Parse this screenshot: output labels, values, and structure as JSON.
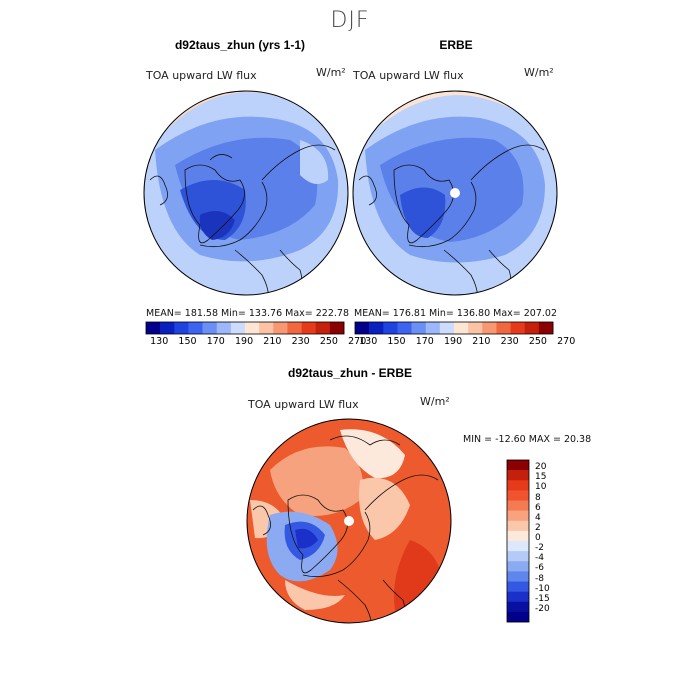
{
  "season": "DJF",
  "panels": [
    {
      "title": "d92taus_zhun (yrs 1-1)",
      "variable": "TOA upward LW flux",
      "units": "W/m²",
      "stats": "MEAN= 181.58   Min= 133.76   Max= 222.78"
    },
    {
      "title": "ERBE",
      "variable": "TOA upward LW flux",
      "units": "W/m²",
      "stats": "MEAN= 176.81   Min= 136.80   Max= 207.02"
    }
  ],
  "colorbar_top": {
    "labels": [
      "130",
      "150",
      "170",
      "190",
      "210",
      "230",
      "250",
      "270"
    ],
    "colors": [
      "#00008b",
      "#0a1fbf",
      "#1f43e0",
      "#3c64f0",
      "#6a8ff5",
      "#9db8fa",
      "#cddcfd",
      "#fde6d4",
      "#fbc2a4",
      "#f79872",
      "#f0683f",
      "#e53b1b",
      "#c4200c",
      "#8b0000"
    ]
  },
  "difference": {
    "title": "d92taus_zhun - ERBE",
    "variable": "TOA upward LW flux",
    "units": "W/m²",
    "stats": "MIN = -12.60  MAX =  20.38",
    "colorbar_labels": [
      "20",
      "15",
      "10",
      "8",
      "6",
      "4",
      "2",
      "0",
      "-2",
      "-4",
      "-6",
      "-8",
      "-10",
      "-15",
      "-20"
    ],
    "colorbar_colors": [
      "#8b0000",
      "#c4200c",
      "#e53b1b",
      "#f0532e",
      "#f47a52",
      "#f8a27e",
      "#fbc7ab",
      "#fde8dc",
      "#dde8fb",
      "#b4cbf7",
      "#8baaf2",
      "#5f86ec",
      "#3558e2",
      "#1b2fc9",
      "#08109f",
      "#00008b"
    ]
  }
}
